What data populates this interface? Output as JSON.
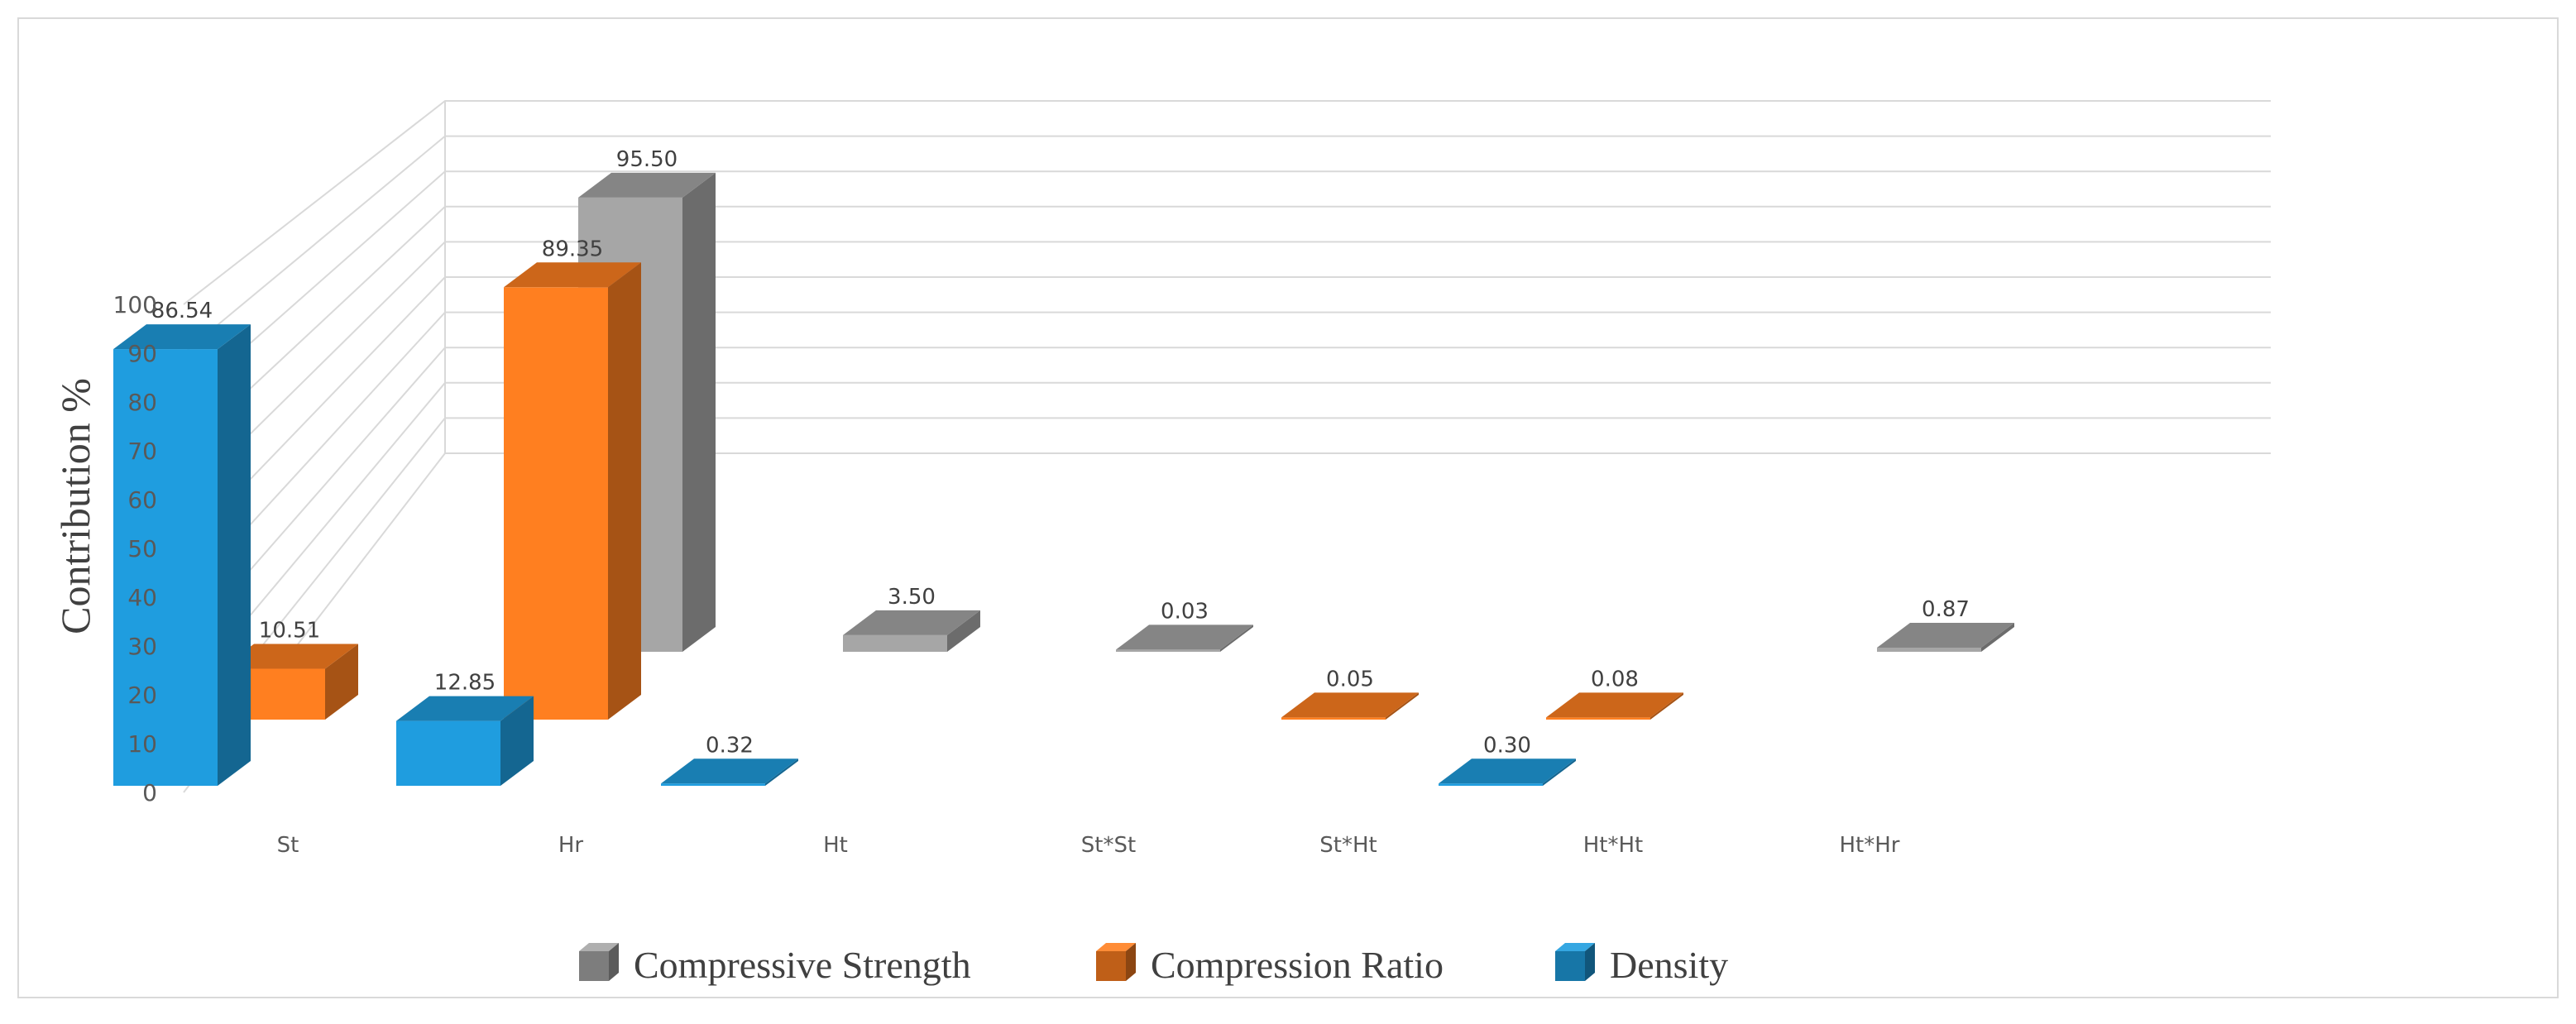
{
  "chart_data": {
    "type": "bar",
    "variant": "3d-clustered",
    "title": "",
    "ylabel": "Contribution %",
    "xlabel": "",
    "ylim": [
      0,
      100
    ],
    "yticks": [
      0,
      10,
      20,
      30,
      40,
      50,
      60,
      70,
      80,
      90,
      100
    ],
    "categories": [
      "St",
      "Hr",
      "Ht",
      "St*St",
      "St*Ht",
      "Ht*Ht",
      "Ht*Hr"
    ],
    "series": [
      {
        "name": "Compressive Strength",
        "color": "#a6a6a6",
        "values": [
          null,
          95.5,
          3.5,
          0.03,
          null,
          null,
          0.87
        ],
        "labels": [
          "",
          "95.50",
          "3.50",
          "0.03",
          "",
          "",
          "0.87"
        ]
      },
      {
        "name": "Compression Ratio",
        "color": "#ff7f20",
        "values": [
          10.51,
          89.35,
          null,
          null,
          0.05,
          0.08,
          null
        ],
        "labels": [
          "10.51",
          "89.35",
          "",
          "",
          "0.05",
          "0.08",
          ""
        ]
      },
      {
        "name": "Density",
        "color": "#1f9ddf",
        "values": [
          86.54,
          12.85,
          0.32,
          null,
          null,
          0.3,
          null
        ],
        "labels": [
          "86.54",
          "12.85",
          "0.32",
          "",
          "",
          "0.30",
          ""
        ]
      }
    ],
    "legend": {
      "position": "bottom",
      "items": [
        "Compressive Strength",
        "Compression Ratio",
        "Density"
      ]
    },
    "grid": true
  }
}
